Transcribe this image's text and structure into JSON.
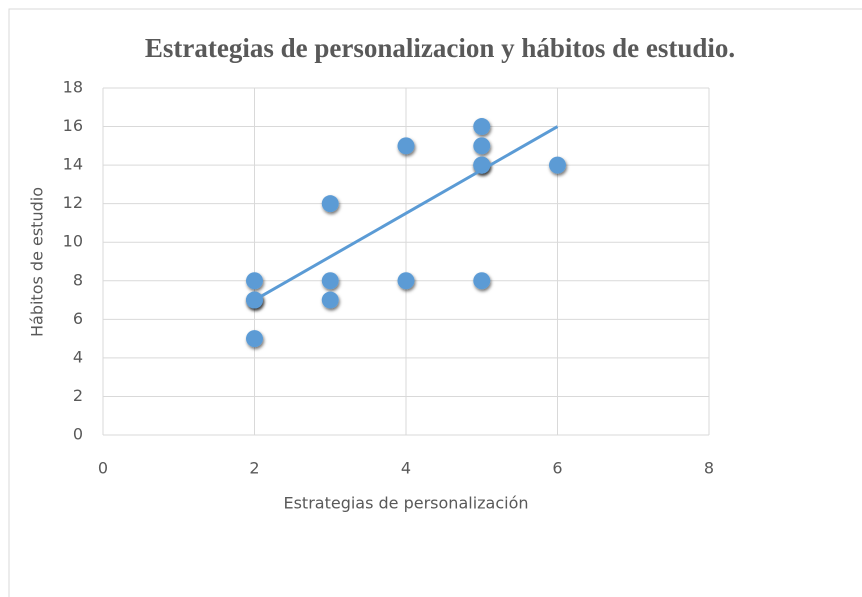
{
  "chart_data": {
    "type": "scatter",
    "title": "Estrategias de personalizacion y hábitos de estudio.",
    "x_label": "Estrategias de personalización",
    "y_label": "Hábitos de estudio",
    "x": [
      2,
      2,
      2,
      2,
      3,
      3,
      3,
      4,
      4,
      5,
      5,
      5,
      5,
      5,
      6
    ],
    "values": [
      8,
      7,
      7,
      5,
      12,
      8,
      7,
      15,
      8,
      16,
      15,
      14,
      14,
      8,
      14
    ],
    "color": "#5b9bd5",
    "trendline": {
      "x": [
        2,
        6
      ],
      "y": [
        7.0,
        16.0
      ],
      "color": "#5b9bd5"
    },
    "xlim": [
      0,
      8
    ],
    "xticks": [
      0,
      2,
      4,
      6,
      8
    ],
    "ylim": [
      0,
      18
    ],
    "yticks": [
      0,
      2,
      4,
      6,
      8,
      10,
      12,
      14,
      16,
      18
    ],
    "grid": true
  }
}
